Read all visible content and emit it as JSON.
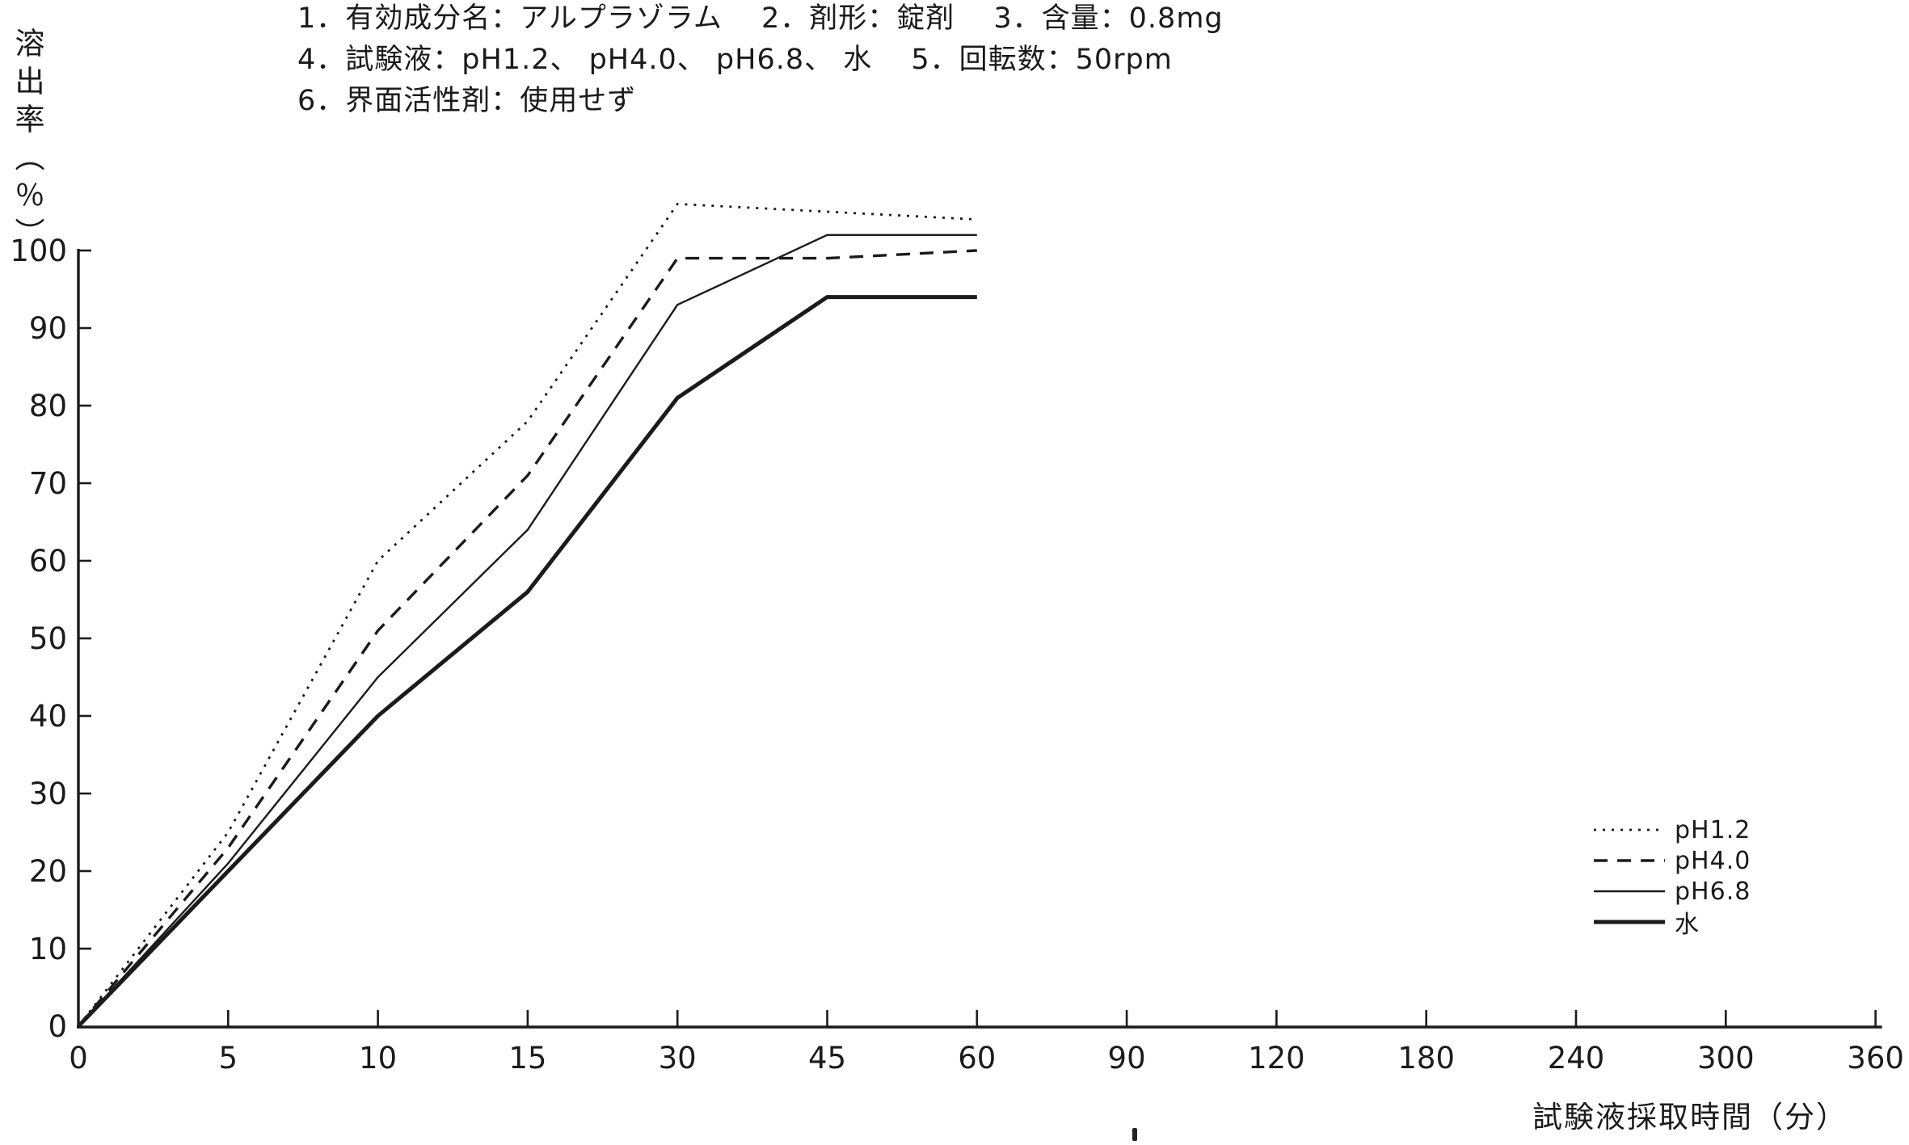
{
  "header": {
    "line1": "1．有効成分名：アルプラゾラム　 2．剤形：錠剤　 3．含量：0.8mg",
    "line2": "4．試験液：pH1.2、 pH4.0、 pH6.8、 水　 5．回転数：50rpm",
    "line3": "6．界面活性剤：使用せず"
  },
  "chart_data": {
    "type": "line",
    "title": "",
    "xlabel": "試験液採取時間（分）",
    "ylabel": "溶出率（％）",
    "x_axis_type": "categorical",
    "x_tick_labels": [
      "0",
      "5",
      "10",
      "15",
      "30",
      "45",
      "60",
      "90",
      "120",
      "180",
      "240",
      "300",
      "360"
    ],
    "y_tick_labels": [
      "0",
      "10",
      "20",
      "30",
      "40",
      "50",
      "60",
      "70",
      "80",
      "90",
      "100"
    ],
    "ylim": [
      0,
      110
    ],
    "grid": false,
    "legend_position": "right-middle",
    "sample_times_min": [
      0,
      5,
      10,
      15,
      30,
      45,
      60
    ],
    "series": [
      {
        "name": "pH1.2",
        "style": "dotted",
        "values": [
          0,
          25,
          60,
          78,
          106,
          105,
          104
        ]
      },
      {
        "name": "pH4.0",
        "style": "dashed",
        "values": [
          0,
          23,
          51,
          71,
          99,
          99,
          100
        ]
      },
      {
        "name": "pH6.8",
        "style": "solid-thin",
        "values": [
          0,
          21,
          45,
          64,
          93,
          102,
          102
        ]
      },
      {
        "name": "水",
        "style": "solid-thick",
        "values": [
          0,
          20,
          40,
          56,
          81,
          94,
          94
        ]
      }
    ]
  },
  "colors": {
    "ink": "#1b1b1b",
    "paper": "#ffffff"
  }
}
